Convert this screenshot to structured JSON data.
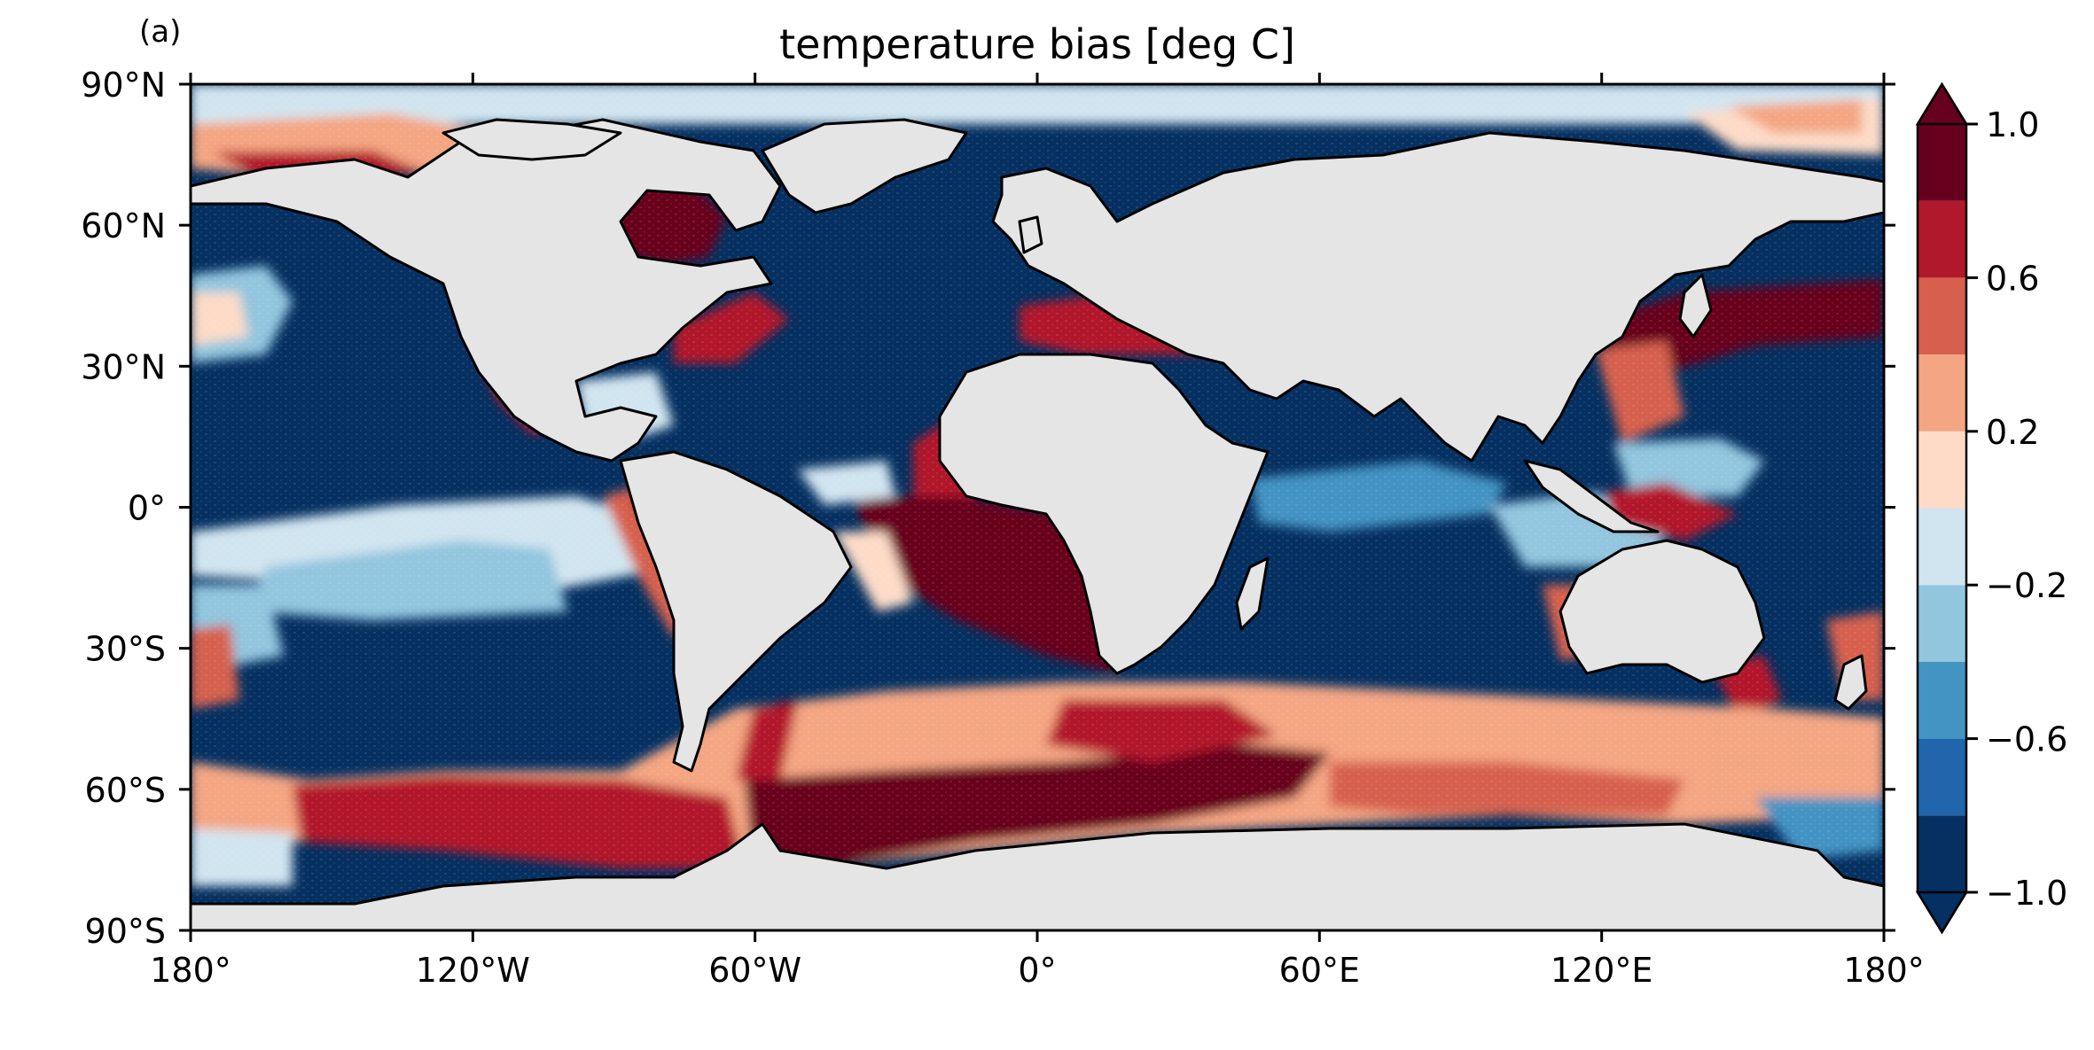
{
  "panel_label": "(a)",
  "title": "temperature bias [deg C]",
  "map": {
    "projection": "PlateCarree",
    "lon_range": [
      -180,
      180
    ],
    "lat_range": [
      -90,
      90
    ],
    "land_color": "#e5e5e5",
    "coastline_color": "#000000",
    "lat_ticks": [
      {
        "value": 90,
        "label": "90°N"
      },
      {
        "value": 60,
        "label": "60°N"
      },
      {
        "value": 30,
        "label": "30°N"
      },
      {
        "value": 0,
        "label": "0°"
      },
      {
        "value": -30,
        "label": "30°S"
      },
      {
        "value": -60,
        "label": "60°S"
      },
      {
        "value": -90,
        "label": "90°S"
      }
    ],
    "lon_ticks": [
      {
        "value": -180,
        "label": "180°"
      },
      {
        "value": -120,
        "label": "120°W"
      },
      {
        "value": -60,
        "label": "60°W"
      },
      {
        "value": 0,
        "label": "0°"
      },
      {
        "value": 60,
        "label": "60°E"
      },
      {
        "value": 120,
        "label": "120°E"
      },
      {
        "value": 180,
        "label": "180°"
      }
    ]
  },
  "colorbar": {
    "extend": "both",
    "levels": [
      -1.0,
      -0.8,
      -0.6,
      -0.4,
      -0.2,
      0.0,
      0.2,
      0.4,
      0.6,
      0.8,
      1.0
    ],
    "colors": [
      "#053061",
      "#2166ac",
      "#4393c3",
      "#92c5de",
      "#d1e5f0",
      "#fddbc7",
      "#f4a582",
      "#d6604d",
      "#b2182b",
      "#67001f"
    ],
    "under_color": "#053061",
    "over_color": "#67001f",
    "tick_values": [
      1.0,
      0.6,
      0.2,
      -0.2,
      -0.6,
      -1.0
    ],
    "tick_labels": [
      "1.0",
      "0.6",
      "0.2",
      "−0.2",
      "−0.6",
      "−1.0"
    ]
  }
}
